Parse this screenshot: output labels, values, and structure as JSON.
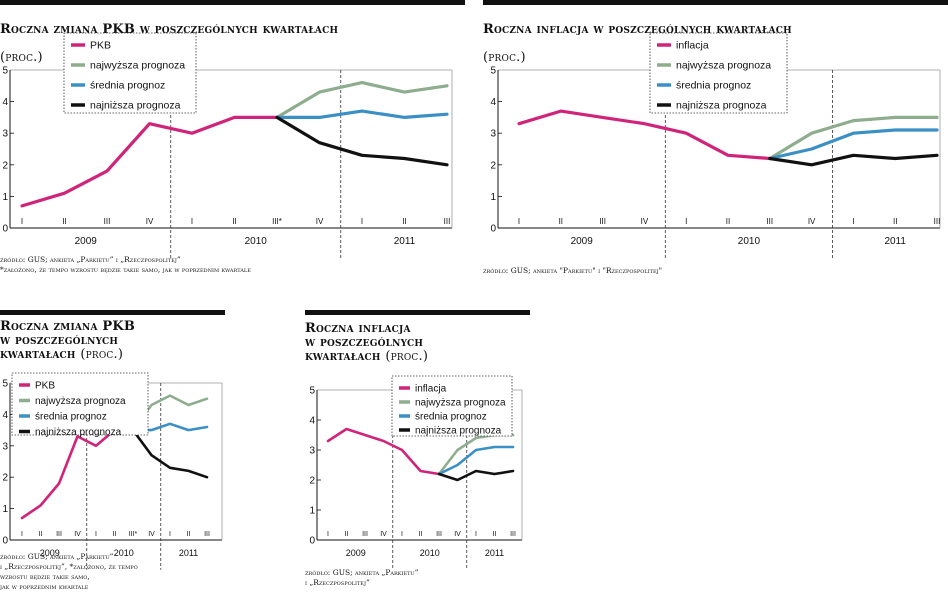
{
  "chart_data": [
    {
      "type": "line",
      "title": "Roczna zmiana PKB w poszczególnych kwartałach",
      "subtitle": "(proc.)",
      "source": "źródło: GUS; ankieta „Parkietu” i „Rzeczpospolitej”\n*założono, że tempo wzrostu będzie takie samo, jak w poprzednim kwartale",
      "ylim": [
        0,
        5
      ],
      "yticks": [
        "0",
        "1",
        "2",
        "3",
        "4",
        "5"
      ],
      "quarter_labels": [
        "I",
        "II",
        "III",
        "IV",
        "I",
        "II",
        "III*",
        "IV",
        "I",
        "II",
        "III"
      ],
      "years": [
        {
          "label": "2009",
          "at": 1.5
        },
        {
          "label": "2010",
          "at": 5.5
        },
        {
          "label": "2011",
          "at": 9.0
        }
      ],
      "grid": "dashed vertical lines at year boundaries",
      "legend_position": "top-left",
      "series": [
        {
          "name": "PKB",
          "color": "#d0247a",
          "x": [
            0,
            1,
            2,
            3,
            4,
            5,
            6
          ],
          "values": [
            0.7,
            1.1,
            1.8,
            3.3,
            3.0,
            3.5,
            3.5
          ]
        },
        {
          "name": "najwyższa prognoza",
          "color": "#8ead8e",
          "x": [
            6,
            7,
            8,
            9,
            10
          ],
          "values": [
            3.5,
            4.3,
            4.6,
            4.3,
            4.5
          ]
        },
        {
          "name": "średnia prognoz",
          "color": "#3a8fc4",
          "x": [
            6,
            7,
            8,
            9,
            10
          ],
          "values": [
            3.5,
            3.5,
            3.7,
            3.5,
            3.6
          ]
        },
        {
          "name": "najniższa prognoza",
          "color": "#111111",
          "x": [
            6,
            7,
            8,
            9,
            10
          ],
          "values": [
            3.5,
            2.7,
            2.3,
            2.2,
            2.0
          ]
        }
      ]
    },
    {
      "type": "line",
      "title": "Roczna inflacja w poszczególnych kwartałach",
      "subtitle": "(proc.)",
      "source": "źródło: GUS; ankieta \"Parkietu\" i \"Rzeczpospolitej\"",
      "ylim": [
        0,
        5
      ],
      "yticks": [
        "0",
        "1",
        "2",
        "3",
        "4",
        "5"
      ],
      "quarter_labels": [
        "I",
        "II",
        "III",
        "IV",
        "I",
        "II",
        "III",
        "IV",
        "I",
        "II",
        "III"
      ],
      "years": [
        {
          "label": "2009",
          "at": 1.5
        },
        {
          "label": "2010",
          "at": 5.5
        },
        {
          "label": "2011",
          "at": 9.0
        }
      ],
      "grid": "dashed vertical lines at year boundaries",
      "legend_position": "top-left",
      "series": [
        {
          "name": "inflacja",
          "color": "#d0247a",
          "x": [
            0,
            1,
            2,
            3,
            4,
            5,
            6
          ],
          "values": [
            3.3,
            3.7,
            3.5,
            3.3,
            3.0,
            2.3,
            2.2
          ]
        },
        {
          "name": "najwyższa prognoza",
          "color": "#8ead8e",
          "x": [
            6,
            7,
            8,
            9,
            10
          ],
          "values": [
            2.2,
            3.0,
            3.4,
            3.5,
            3.5
          ]
        },
        {
          "name": "średnia prognoz",
          "color": "#3a8fc4",
          "x": [
            6,
            7,
            8,
            9,
            10
          ],
          "values": [
            2.2,
            2.5,
            3.0,
            3.1,
            3.1
          ]
        },
        {
          "name": "najniższa prognoza",
          "color": "#111111",
          "x": [
            6,
            7,
            8,
            9,
            10
          ],
          "values": [
            2.2,
            2.0,
            2.3,
            2.2,
            2.3
          ]
        }
      ]
    },
    {
      "type": "line",
      "title": "Roczna zmiana PKB\nw poszczególnych\nkwartałach",
      "subtitle": "(proc.)",
      "source": "źródło: GUS; ankieta „Parkietu”\ni „Rzeczpospolitej”, *założono, że tempo\nwzrostu będzie takie samo,\njak w poprzednim kwartale",
      "ylim": [
        0,
        5
      ],
      "yticks": [
        "0",
        "1",
        "2",
        "3",
        "4",
        "5"
      ],
      "quarter_labels": [
        "I",
        "II",
        "III",
        "IV",
        "I",
        "II",
        "III*",
        "IV",
        "I",
        "II",
        "III"
      ],
      "years": [
        {
          "label": "2009",
          "at": 1.5
        },
        {
          "label": "2010",
          "at": 5.5
        },
        {
          "label": "2011",
          "at": 9.0
        }
      ],
      "grid": "dashed vertical lines at year boundaries",
      "legend_position": "top-left",
      "series": [
        {
          "name": "PKB",
          "color": "#d0247a",
          "x": [
            0,
            1,
            2,
            3,
            4,
            5,
            6
          ],
          "values": [
            0.7,
            1.1,
            1.8,
            3.3,
            3.0,
            3.5,
            3.5
          ]
        },
        {
          "name": "najwyższa prognoza",
          "color": "#8ead8e",
          "x": [
            6,
            7,
            8,
            9,
            10
          ],
          "values": [
            3.5,
            4.3,
            4.6,
            4.3,
            4.5
          ]
        },
        {
          "name": "średnia prognoz",
          "color": "#3a8fc4",
          "x": [
            6,
            7,
            8,
            9,
            10
          ],
          "values": [
            3.5,
            3.5,
            3.7,
            3.5,
            3.6
          ]
        },
        {
          "name": "najniższa prognoza",
          "color": "#111111",
          "x": [
            6,
            7,
            8,
            9,
            10
          ],
          "values": [
            3.5,
            2.7,
            2.3,
            2.2,
            2.0
          ]
        }
      ]
    },
    {
      "type": "line",
      "title": "Roczna inflacja\nw poszczególnych\nkwartałach",
      "subtitle": "(proc.)",
      "source": "źródło: GUS; ankieta „Parkietu”\ni „Rzeczpospolitej”",
      "ylim": [
        0,
        5
      ],
      "yticks": [
        "0",
        "1",
        "2",
        "3",
        "4",
        "5"
      ],
      "quarter_labels": [
        "I",
        "II",
        "III",
        "IV",
        "I",
        "II",
        "III",
        "IV",
        "I",
        "II",
        "III"
      ],
      "years": [
        {
          "label": "2009",
          "at": 1.5
        },
        {
          "label": "2010",
          "at": 5.5
        },
        {
          "label": "2011",
          "at": 9.0
        }
      ],
      "grid": "dashed vertical lines at year boundaries",
      "legend_position": "top-left",
      "series": [
        {
          "name": "inflacja",
          "color": "#d0247a",
          "x": [
            0,
            1,
            2,
            3,
            4,
            5,
            6
          ],
          "values": [
            3.3,
            3.7,
            3.5,
            3.3,
            3.0,
            2.3,
            2.2
          ]
        },
        {
          "name": "najwyższa prognoza",
          "color": "#8ead8e",
          "x": [
            6,
            7,
            8,
            9,
            10
          ],
          "values": [
            2.2,
            3.0,
            3.4,
            3.5,
            3.5
          ]
        },
        {
          "name": "średnia prognoz",
          "color": "#3a8fc4",
          "x": [
            6,
            7,
            8,
            9,
            10
          ],
          "values": [
            2.2,
            2.5,
            3.0,
            3.1,
            3.1
          ]
        },
        {
          "name": "najniższa prognoza",
          "color": "#111111",
          "x": [
            6,
            7,
            8,
            9,
            10
          ],
          "values": [
            2.2,
            2.0,
            2.3,
            2.2,
            2.3
          ]
        }
      ]
    }
  ]
}
